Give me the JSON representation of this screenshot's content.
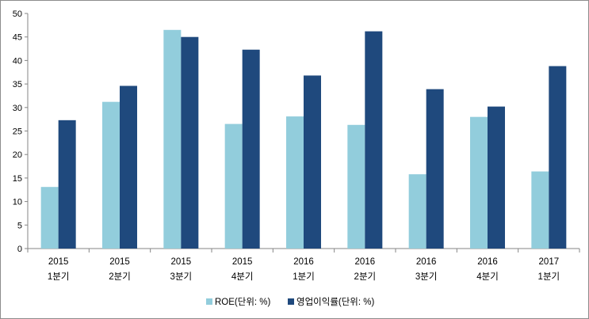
{
  "chart_data": {
    "type": "bar",
    "categories": [
      [
        "2015",
        "1분기"
      ],
      [
        "2015",
        "2분기"
      ],
      [
        "2015",
        "3분기"
      ],
      [
        "2015",
        "4분기"
      ],
      [
        "2016",
        "1분기"
      ],
      [
        "2016",
        "2분기"
      ],
      [
        "2016",
        "3분기"
      ],
      [
        "2016",
        "4분기"
      ],
      [
        "2017",
        "1분기"
      ]
    ],
    "series": [
      {
        "name": "ROE(단위: %)",
        "color": "#92cddc",
        "values": [
          13.1,
          31.2,
          46.5,
          26.5,
          28.1,
          26.3,
          15.8,
          28.0,
          16.4
        ]
      },
      {
        "name": "영업이익률(단위: %)",
        "color": "#1f497d",
        "values": [
          27.3,
          34.6,
          45.0,
          42.3,
          36.8,
          46.2,
          33.9,
          30.2,
          38.8
        ]
      }
    ],
    "ylim": [
      0,
      50
    ],
    "yticks": [
      0,
      5,
      10,
      15,
      20,
      25,
      30,
      35,
      40,
      45,
      50
    ],
    "grid": false,
    "legend": "bottom",
    "title": "",
    "xlabel": "",
    "ylabel": ""
  }
}
